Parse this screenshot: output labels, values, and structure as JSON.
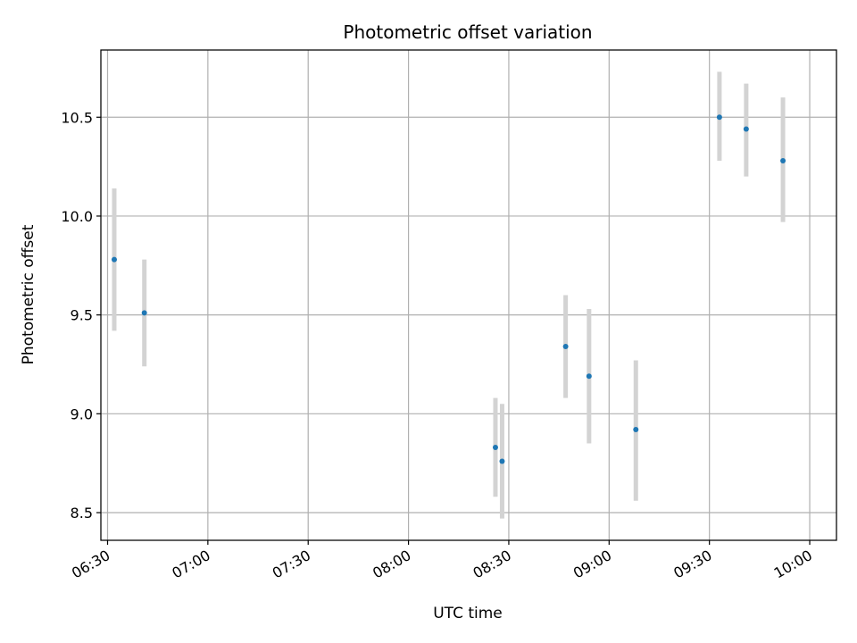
{
  "chart_data": {
    "type": "scatter",
    "title": "Photometric offset variation",
    "xlabel": "UTC time",
    "ylabel": "Photometric offset",
    "x_axis_type": "time",
    "xlim": [
      "06:28",
      "10:08"
    ],
    "ylim": [
      8.36,
      10.84
    ],
    "x_ticks": [
      "06:30",
      "07:00",
      "07:30",
      "08:00",
      "08:30",
      "09:00",
      "09:30",
      "10:00"
    ],
    "y_ticks": [
      8.5,
      9.0,
      9.5,
      10.0,
      10.5
    ],
    "y_tick_labels": [
      "8.5",
      "9.0",
      "9.5",
      "10.0",
      "10.5"
    ],
    "grid": true,
    "legend": "none",
    "colors": {
      "points": "#1f77b4",
      "errorbars": "#d3d3d3",
      "grid": "#b0b0b0",
      "axes": "#000000"
    },
    "series": [
      {
        "points": [
          {
            "x": "06:32",
            "y": 9.78,
            "y_low": 9.42,
            "y_high": 10.14
          },
          {
            "x": "06:41",
            "y": 9.51,
            "y_low": 9.24,
            "y_high": 9.78
          },
          {
            "x": "08:26",
            "y": 8.83,
            "y_low": 8.58,
            "y_high": 9.08
          },
          {
            "x": "08:28",
            "y": 8.76,
            "y_low": 8.47,
            "y_high": 9.05
          },
          {
            "x": "08:47",
            "y": 9.34,
            "y_low": 9.08,
            "y_high": 9.6
          },
          {
            "x": "08:54",
            "y": 9.19,
            "y_low": 8.85,
            "y_high": 9.53
          },
          {
            "x": "09:08",
            "y": 8.92,
            "y_low": 8.56,
            "y_high": 9.27
          },
          {
            "x": "09:33",
            "y": 10.5,
            "y_low": 10.28,
            "y_high": 10.73
          },
          {
            "x": "09:41",
            "y": 10.44,
            "y_low": 10.2,
            "y_high": 10.67
          },
          {
            "x": "09:52",
            "y": 10.28,
            "y_low": 9.97,
            "y_high": 10.6
          }
        ]
      }
    ]
  }
}
